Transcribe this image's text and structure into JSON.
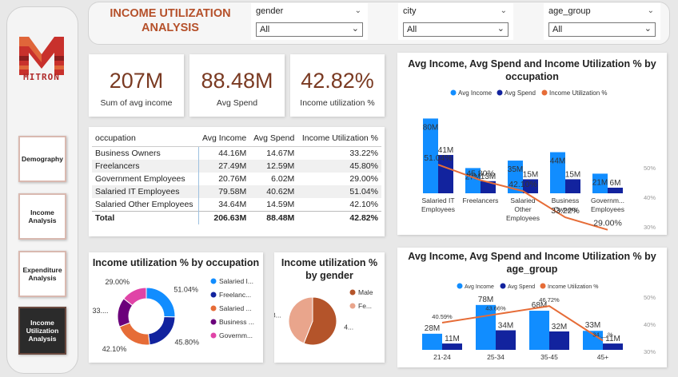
{
  "header": {
    "title": "INCOME UTILIZATION ANALYSIS",
    "slicers": [
      {
        "label": "gender",
        "value": "All"
      },
      {
        "label": "city",
        "value": "All"
      },
      {
        "label": "age_group",
        "value": "All"
      }
    ]
  },
  "sidebar": {
    "logo_text": "MITRON",
    "items": [
      {
        "label": "Demography",
        "active": false
      },
      {
        "label": "Income Analysis",
        "active": false
      },
      {
        "label": "Expenditure Analysis",
        "active": false
      },
      {
        "label": "Income Utilization Analysis",
        "active": true
      }
    ]
  },
  "kpis": [
    {
      "value": "207M",
      "caption": "Sum of avg income"
    },
    {
      "value": "88.48M",
      "caption": "Avg Spend"
    },
    {
      "value": "42.82%",
      "caption": "Income utilization %"
    }
  ],
  "table": {
    "columns": [
      "occupation",
      "Avg Income",
      "Avg Spend",
      "Income Utilization %"
    ],
    "rows": [
      [
        "Business Owners",
        "44.16M",
        "14.67M",
        "33.22%"
      ],
      [
        "Freelancers",
        "27.49M",
        "12.59M",
        "45.80%"
      ],
      [
        "Government Employees",
        "20.76M",
        "6.02M",
        "29.00%"
      ],
      [
        "Salaried IT Employees",
        "79.58M",
        "40.62M",
        "51.04%"
      ],
      [
        "Salaried Other Employees",
        "34.64M",
        "14.59M",
        "42.10%"
      ]
    ],
    "total": [
      "Total",
      "206.63M",
      "88.48M",
      "42.82%"
    ]
  },
  "colors": {
    "income": "#118dff",
    "spend": "#12239e",
    "util": "#e66c37",
    "accent": "#b5502a"
  },
  "chart_data": [
    {
      "type": "bar",
      "title": "Avg Income, Avg Spend and Income Utilization % by occupation",
      "categories": [
        "Salaried IT Employees",
        "Freelancers",
        "Salaried Other Employees",
        "Business Owners",
        "Government Employees"
      ],
      "series": [
        {
          "name": "Avg Income",
          "values": [
            80,
            27,
            35,
            44,
            21
          ],
          "labels": [
            "80M",
            "27M",
            "35M",
            "44M",
            "21M"
          ]
        },
        {
          "name": "Avg Spend",
          "values": [
            41,
            13,
            15,
            15,
            6
          ],
          "labels": [
            "41M",
            "13M",
            "15M",
            "15M",
            "6M"
          ]
        },
        {
          "name": "Income Utilization %",
          "values": [
            51.04,
            45.8,
            42.1,
            33.22,
            29.0
          ],
          "labels": [
            "51.04%",
            "45.80%",
            "42.10%",
            "33.22%",
            "29.00%"
          ]
        }
      ],
      "secondary_ticks": [
        "50%",
        "40%",
        "30%"
      ],
      "legend": "top"
    },
    {
      "type": "bar",
      "title": "Avg Income, Avg Spend and Income Utilization % by age_group",
      "categories": [
        "21-24",
        "25-34",
        "35-45",
        "45+"
      ],
      "series": [
        {
          "name": "Avg Income",
          "values": [
            28,
            78,
            68,
            33
          ],
          "labels": [
            "28M",
            "78M",
            "68M",
            "33M"
          ]
        },
        {
          "name": "Avg Spend",
          "values": [
            11,
            34,
            32,
            11
          ],
          "labels": [
            "11M",
            "34M",
            "32M",
            "11M"
          ]
        },
        {
          "name": "Income Utilization %",
          "values": [
            40.59,
            43.66,
            46.72,
            34
          ],
          "labels": [
            "40.59%",
            "43.66%",
            "46.72%",
            "34.__%"
          ]
        }
      ],
      "secondary_ticks": [
        "50%",
        "40%",
        "30%"
      ],
      "legend": "top"
    },
    {
      "type": "pie",
      "title": "Income utilization % by occupation",
      "donut": true,
      "slices": [
        {
          "name": "Salaried I...",
          "value": 51.04,
          "label": "51.04%",
          "color": "#118dff"
        },
        {
          "name": "Freelanc...",
          "value": 45.8,
          "label": "45.80%",
          "color": "#12239e"
        },
        {
          "name": "Salaried ...",
          "value": 42.1,
          "label": "42.10%",
          "color": "#e66c37"
        },
        {
          "name": "Business ...",
          "value": 33.22,
          "label": "33....",
          "color": "#6b007b"
        },
        {
          "name": "Governm...",
          "value": 29.0,
          "label": "29.00%",
          "color": "#e044a7"
        }
      ]
    },
    {
      "type": "pie",
      "title": "Income utilization % by gender",
      "slices": [
        {
          "name": "Male",
          "value": 56,
          "label": "4...",
          "color": "#b4542a"
        },
        {
          "name": "Fe...",
          "value": 44,
          "label": "3...",
          "color": "#e9a58c"
        }
      ]
    }
  ]
}
